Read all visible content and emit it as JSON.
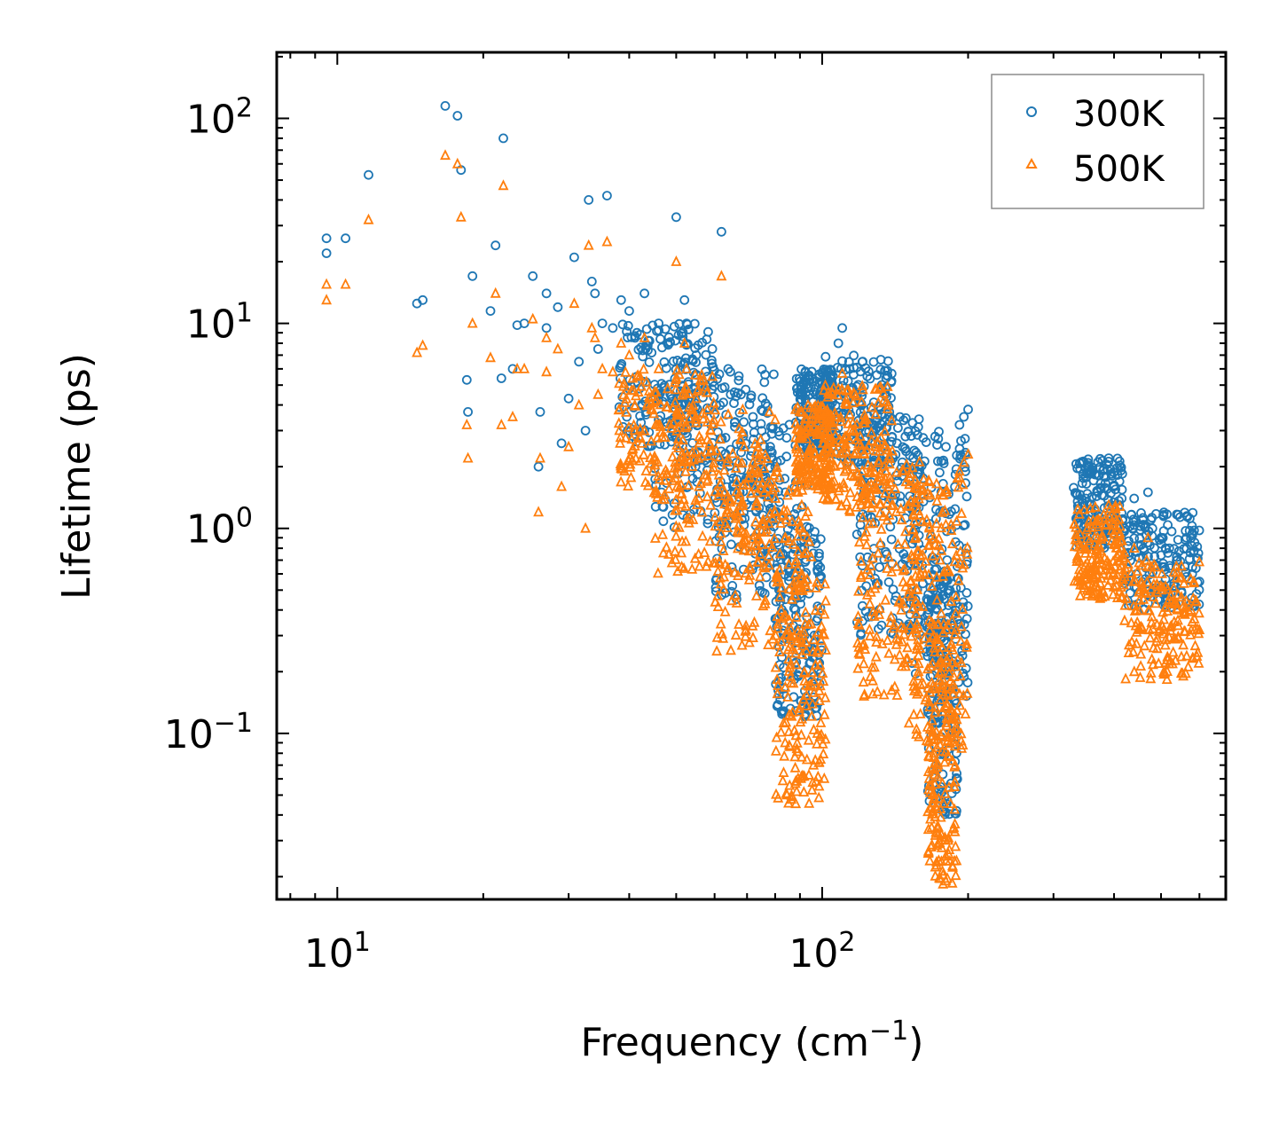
{
  "chart_data": {
    "type": "scatter",
    "title": "",
    "xlabel": "Frequency (cm",
    "xlabel_sup": "−1",
    "xlabel_close": ")",
    "ylabel": "Lifetime (ps)",
    "xscale": "log",
    "yscale": "log",
    "xlim": [
      7.5,
      680
    ],
    "ylim": [
      0.0155,
      210
    ],
    "x_ticks": [
      {
        "value": 10,
        "base": "10",
        "exp": "1"
      },
      {
        "value": 100,
        "base": "10",
        "exp": "2"
      }
    ],
    "y_ticks": [
      {
        "value": 0.1,
        "base": "10",
        "exp": "−1"
      },
      {
        "value": 1,
        "base": "10",
        "exp": "0"
      },
      {
        "value": 10,
        "base": "10",
        "exp": "1"
      },
      {
        "value": 100,
        "base": "10",
        "exp": "2"
      }
    ],
    "legend_position": "top-right",
    "series": [
      {
        "name": "300K",
        "marker": "circle",
        "color": "#1f77b4",
        "x": [
          9.5,
          9.5,
          10.4,
          11.6,
          14.6,
          15.0,
          16.7,
          17.7,
          18.0,
          18.5,
          18.6,
          19.0,
          20.7,
          21.2,
          21.8,
          22.0,
          23.0,
          23.5,
          24.3,
          25.3,
          26.0,
          26.2,
          27.0,
          27.0,
          28.5,
          29.0,
          30.0,
          30.8,
          31.5,
          32.5,
          33.0,
          33.5,
          34.0,
          34.5,
          35.2,
          36.0,
          37.0,
          38.5,
          40.0,
          41.5,
          43.0,
          44.5,
          46.0,
          48.0,
          50.0,
          52.0,
          52.5,
          55.0,
          58.0,
          60.5,
          62.0,
          64.0,
          68.0,
          72.0,
          76.0,
          80.0,
          84.0,
          88.0,
          92.0,
          96.0,
          100.0,
          104.0,
          108.0,
          110.0,
          114.0,
          118.0,
          122.0,
          128.0,
          134.0,
          140.0,
          146.0,
          152.0,
          158.0,
          164.0,
          170.0,
          175.0,
          180.0,
          184.0,
          188.0,
          192.0,
          196.0,
          200.0,
          340.0,
          350.0,
          360.0,
          370.0,
          380.0,
          390.0,
          400.0,
          410.0,
          420.0,
          440.0,
          460.0,
          470.0,
          480.0,
          500.0,
          520.0,
          540.0,
          560.0,
          580.0,
          600.0
        ],
        "y": [
          26.0,
          22.0,
          26.0,
          53.0,
          12.5,
          13.0,
          115.0,
          103.0,
          56.0,
          5.3,
          3.7,
          17.0,
          11.5,
          24.0,
          5.4,
          80.0,
          6.0,
          9.8,
          10.0,
          17.0,
          2.0,
          3.7,
          14.0,
          9.5,
          12.0,
          2.6,
          4.3,
          21.0,
          6.5,
          3.0,
          40.0,
          16.0,
          14.0,
          7.5,
          10.0,
          42.0,
          9.5,
          13.0,
          11.5,
          9.0,
          14.0,
          7.2,
          10.0,
          8.0,
          33.0,
          13.0,
          10.0,
          7.0,
          5.5,
          4.0,
          28.0,
          6.0,
          4.5,
          3.5,
          2.5,
          2.0,
          1.5,
          0.8,
          0.3,
          0.15,
          3.0,
          5.5,
          8.0,
          9.5,
          6.0,
          4.5,
          3.8,
          3.2,
          2.8,
          2.2,
          1.8,
          0.9,
          0.35,
          0.25,
          0.5,
          1.2,
          2.5,
          0.3,
          0.12,
          3.2,
          3.5,
          3.8,
          0.95,
          1.4,
          1.2,
          1.5,
          1.0,
          2.2,
          1.6,
          1.3,
          1.0,
          1.4,
          0.8,
          1.5,
          1.0,
          0.9,
          0.8,
          0.7,
          0.65,
          0.6,
          0.55
        ],
        "clusters": [
          {
            "x": [
              38,
              60
            ],
            "y": [
              2.5,
              10
            ]
          },
          {
            "x": [
              45,
              80
            ],
            "y": [
              1.0,
              6
            ]
          },
          {
            "x": [
              60,
              95
            ],
            "y": [
              0.45,
              3.5
            ]
          },
          {
            "x": [
              80,
              100
            ],
            "y": [
              0.12,
              1.0
            ]
          },
          {
            "x": [
              88,
              105
            ],
            "y": [
              2.5,
              6
            ]
          },
          {
            "x": [
              100,
              140
            ],
            "y": [
              2.0,
              7
            ]
          },
          {
            "x": [
              118,
              160
            ],
            "y": [
              0.3,
              3.5
            ]
          },
          {
            "x": [
              150,
              200
            ],
            "y": [
              0.15,
              3.0
            ]
          },
          {
            "x": [
              165,
              190
            ],
            "y": [
              0.04,
              0.6
            ]
          },
          {
            "x": [
              330,
              420
            ],
            "y": [
              0.8,
              2.2
            ]
          },
          {
            "x": [
              420,
              600
            ],
            "y": [
              0.4,
              1.2
            ]
          }
        ]
      },
      {
        "name": "500K",
        "marker": "triangle",
        "color": "#ff7f0e",
        "x": [
          9.5,
          9.5,
          10.4,
          11.6,
          14.6,
          15.0,
          16.7,
          17.7,
          18.0,
          18.5,
          18.6,
          19.0,
          20.7,
          21.2,
          21.8,
          22.0,
          23.0,
          23.5,
          24.3,
          25.3,
          26.0,
          26.2,
          27.0,
          27.0,
          28.5,
          29.0,
          30.0,
          30.8,
          31.5,
          32.5,
          33.0,
          33.5,
          34.0,
          34.5,
          35.2,
          36.0,
          37.0,
          38.5,
          40.0,
          41.5,
          43.0,
          44.5,
          46.0,
          48.0,
          50.0,
          52.0,
          52.5,
          55.0,
          58.0,
          60.5,
          62.0,
          64.0,
          68.0,
          72.0,
          76.0,
          80.0,
          84.0,
          88.0,
          92.0,
          96.0,
          100.0,
          104.0,
          108.0,
          110.0,
          114.0,
          118.0,
          122.0,
          128.0,
          134.0,
          140.0,
          146.0,
          152.0,
          158.0,
          164.0,
          170.0,
          175.0,
          180.0,
          184.0,
          188.0,
          192.0,
          196.0,
          200.0,
          340.0,
          350.0,
          360.0,
          370.0,
          380.0,
          390.0,
          400.0,
          410.0,
          420.0,
          440.0,
          460.0,
          470.0,
          480.0,
          500.0,
          520.0,
          540.0,
          560.0,
          580.0,
          600.0
        ],
        "y": [
          15.5,
          13.0,
          15.5,
          32.0,
          7.2,
          7.8,
          66.0,
          60.0,
          33.0,
          3.2,
          2.2,
          10.0,
          6.8,
          14.0,
          3.2,
          47.0,
          3.5,
          6.0,
          6.0,
          10.5,
          1.2,
          2.2,
          8.5,
          5.8,
          7.5,
          1.6,
          2.5,
          12.5,
          4.0,
          1.0,
          24.0,
          9.5,
          8.5,
          4.5,
          6.0,
          25.0,
          5.8,
          8.0,
          7.0,
          5.5,
          8.5,
          4.4,
          6.0,
          4.8,
          20.0,
          8.0,
          6.0,
          4.3,
          3.3,
          2.4,
          17.0,
          3.6,
          2.7,
          2.1,
          1.5,
          1.2,
          0.9,
          0.5,
          0.18,
          0.07,
          1.8,
          3.3,
          4.8,
          5.7,
          3.6,
          2.7,
          2.3,
          1.9,
          1.7,
          1.3,
          1.1,
          0.55,
          0.2,
          0.15,
          0.3,
          0.7,
          1.5,
          0.18,
          0.07,
          1.9,
          2.1,
          2.3,
          0.55,
          0.8,
          0.7,
          0.9,
          0.6,
          1.3,
          0.95,
          0.75,
          0.6,
          0.8,
          0.45,
          0.9,
          0.6,
          0.5,
          0.45,
          0.4,
          0.38,
          0.35,
          0.32
        ],
        "clusters": [
          {
            "x": [
              38,
              60
            ],
            "y": [
              1.6,
              6
            ]
          },
          {
            "x": [
              45,
              80
            ],
            "y": [
              0.6,
              3.8
            ]
          },
          {
            "x": [
              60,
              95
            ],
            "y": [
              0.25,
              2.2
            ]
          },
          {
            "x": [
              80,
              102
            ],
            "y": [
              0.045,
              0.6
            ]
          },
          {
            "x": [
              88,
              105
            ],
            "y": [
              1.5,
              4
            ]
          },
          {
            "x": [
              100,
              140
            ],
            "y": [
              1.2,
              5
            ]
          },
          {
            "x": [
              118,
              160
            ],
            "y": [
              0.15,
              2.2
            ]
          },
          {
            "x": [
              150,
              200
            ],
            "y": [
              0.08,
              1.8
            ]
          },
          {
            "x": [
              165,
              190
            ],
            "y": [
              0.018,
              0.35
            ]
          },
          {
            "x": [
              330,
              420
            ],
            "y": [
              0.45,
              1.3
            ]
          },
          {
            "x": [
              420,
              600
            ],
            "y": [
              0.18,
              0.7
            ]
          }
        ]
      }
    ]
  }
}
